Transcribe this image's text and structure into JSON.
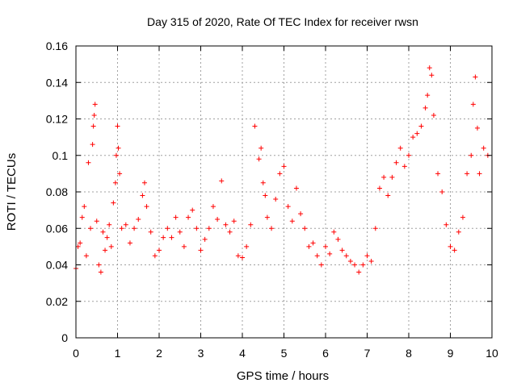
{
  "chart_data": {
    "type": "scatter",
    "title": "Day 315 of 2020, Rate Of TEC Index for receiver rwsn",
    "xlabel": "GPS time / hours",
    "ylabel": "ROTI / TECUs",
    "xlim": [
      0,
      10
    ],
    "ylim": [
      0,
      0.16
    ],
    "xticks": [
      0,
      1,
      2,
      3,
      4,
      5,
      6,
      7,
      8,
      9,
      10
    ],
    "xtick_labels": [
      "0",
      "1",
      "2",
      "3",
      "4",
      "5",
      "6",
      "7",
      "8",
      "9",
      "10"
    ],
    "yticks": [
      0,
      0.02,
      0.04,
      0.06,
      0.08,
      0.1,
      0.12,
      0.14,
      0.16
    ],
    "ytick_labels": [
      "0",
      "0.02",
      "0.04",
      "0.06",
      "0.08",
      "0.1",
      "0.12",
      "0.14",
      "0.16"
    ],
    "grid": true,
    "marker": "+",
    "marker_color": "#ff0000",
    "series": [
      {
        "name": "ROTI",
        "points": [
          [
            0.0,
            0.038
          ],
          [
            0.05,
            0.05
          ],
          [
            0.1,
            0.052
          ],
          [
            0.15,
            0.066
          ],
          [
            0.2,
            0.072
          ],
          [
            0.25,
            0.045
          ],
          [
            0.3,
            0.096
          ],
          [
            0.35,
            0.06
          ],
          [
            0.4,
            0.106
          ],
          [
            0.42,
            0.116
          ],
          [
            0.44,
            0.122
          ],
          [
            0.46,
            0.128
          ],
          [
            0.5,
            0.064
          ],
          [
            0.55,
            0.04
          ],
          [
            0.6,
            0.036
          ],
          [
            0.65,
            0.058
          ],
          [
            0.7,
            0.048
          ],
          [
            0.75,
            0.055
          ],
          [
            0.8,
            0.062
          ],
          [
            0.85,
            0.05
          ],
          [
            0.9,
            0.074
          ],
          [
            0.95,
            0.085
          ],
          [
            0.97,
            0.1
          ],
          [
            1.0,
            0.116
          ],
          [
            1.02,
            0.104
          ],
          [
            1.05,
            0.09
          ],
          [
            1.1,
            0.06
          ],
          [
            1.2,
            0.062
          ],
          [
            1.3,
            0.052
          ],
          [
            1.4,
            0.06
          ],
          [
            1.5,
            0.065
          ],
          [
            1.6,
            0.078
          ],
          [
            1.65,
            0.085
          ],
          [
            1.7,
            0.072
          ],
          [
            1.8,
            0.058
          ],
          [
            1.9,
            0.045
          ],
          [
            2.0,
            0.048
          ],
          [
            2.1,
            0.055
          ],
          [
            2.2,
            0.06
          ],
          [
            2.3,
            0.055
          ],
          [
            2.4,
            0.066
          ],
          [
            2.5,
            0.058
          ],
          [
            2.6,
            0.05
          ],
          [
            2.7,
            0.066
          ],
          [
            2.8,
            0.07
          ],
          [
            2.9,
            0.06
          ],
          [
            3.0,
            0.048
          ],
          [
            3.1,
            0.054
          ],
          [
            3.2,
            0.06
          ],
          [
            3.3,
            0.072
          ],
          [
            3.4,
            0.065
          ],
          [
            3.5,
            0.086
          ],
          [
            3.6,
            0.062
          ],
          [
            3.7,
            0.058
          ],
          [
            3.8,
            0.064
          ],
          [
            3.9,
            0.045
          ],
          [
            4.0,
            0.044
          ],
          [
            4.1,
            0.05
          ],
          [
            4.2,
            0.062
          ],
          [
            4.3,
            0.116
          ],
          [
            4.4,
            0.098
          ],
          [
            4.45,
            0.104
          ],
          [
            4.5,
            0.085
          ],
          [
            4.55,
            0.078
          ],
          [
            4.6,
            0.066
          ],
          [
            4.7,
            0.06
          ],
          [
            4.8,
            0.076
          ],
          [
            4.9,
            0.09
          ],
          [
            5.0,
            0.094
          ],
          [
            5.1,
            0.072
          ],
          [
            5.2,
            0.064
          ],
          [
            5.3,
            0.082
          ],
          [
            5.4,
            0.068
          ],
          [
            5.5,
            0.06
          ],
          [
            5.6,
            0.05
          ],
          [
            5.7,
            0.052
          ],
          [
            5.8,
            0.045
          ],
          [
            5.9,
            0.04
          ],
          [
            6.0,
            0.05
          ],
          [
            6.1,
            0.046
          ],
          [
            6.2,
            0.058
          ],
          [
            6.3,
            0.054
          ],
          [
            6.4,
            0.048
          ],
          [
            6.5,
            0.045
          ],
          [
            6.6,
            0.042
          ],
          [
            6.7,
            0.04
          ],
          [
            6.8,
            0.036
          ],
          [
            6.9,
            0.04
          ],
          [
            7.0,
            0.045
          ],
          [
            7.1,
            0.042
          ],
          [
            7.2,
            0.06
          ],
          [
            7.3,
            0.082
          ],
          [
            7.4,
            0.088
          ],
          [
            7.5,
            0.078
          ],
          [
            7.6,
            0.088
          ],
          [
            7.7,
            0.096
          ],
          [
            7.8,
            0.104
          ],
          [
            7.9,
            0.094
          ],
          [
            8.0,
            0.1
          ],
          [
            8.1,
            0.11
          ],
          [
            8.2,
            0.112
          ],
          [
            8.3,
            0.116
          ],
          [
            8.4,
            0.126
          ],
          [
            8.45,
            0.133
          ],
          [
            8.5,
            0.148
          ],
          [
            8.55,
            0.144
          ],
          [
            8.6,
            0.122
          ],
          [
            8.7,
            0.09
          ],
          [
            8.8,
            0.08
          ],
          [
            8.9,
            0.062
          ],
          [
            9.0,
            0.05
          ],
          [
            9.1,
            0.048
          ],
          [
            9.2,
            0.058
          ],
          [
            9.3,
            0.066
          ],
          [
            9.4,
            0.09
          ],
          [
            9.5,
            0.1
          ],
          [
            9.55,
            0.128
          ],
          [
            9.6,
            0.143
          ],
          [
            9.65,
            0.115
          ],
          [
            9.7,
            0.09
          ],
          [
            9.8,
            0.104
          ],
          [
            9.9,
            0.1
          ]
        ]
      }
    ]
  }
}
